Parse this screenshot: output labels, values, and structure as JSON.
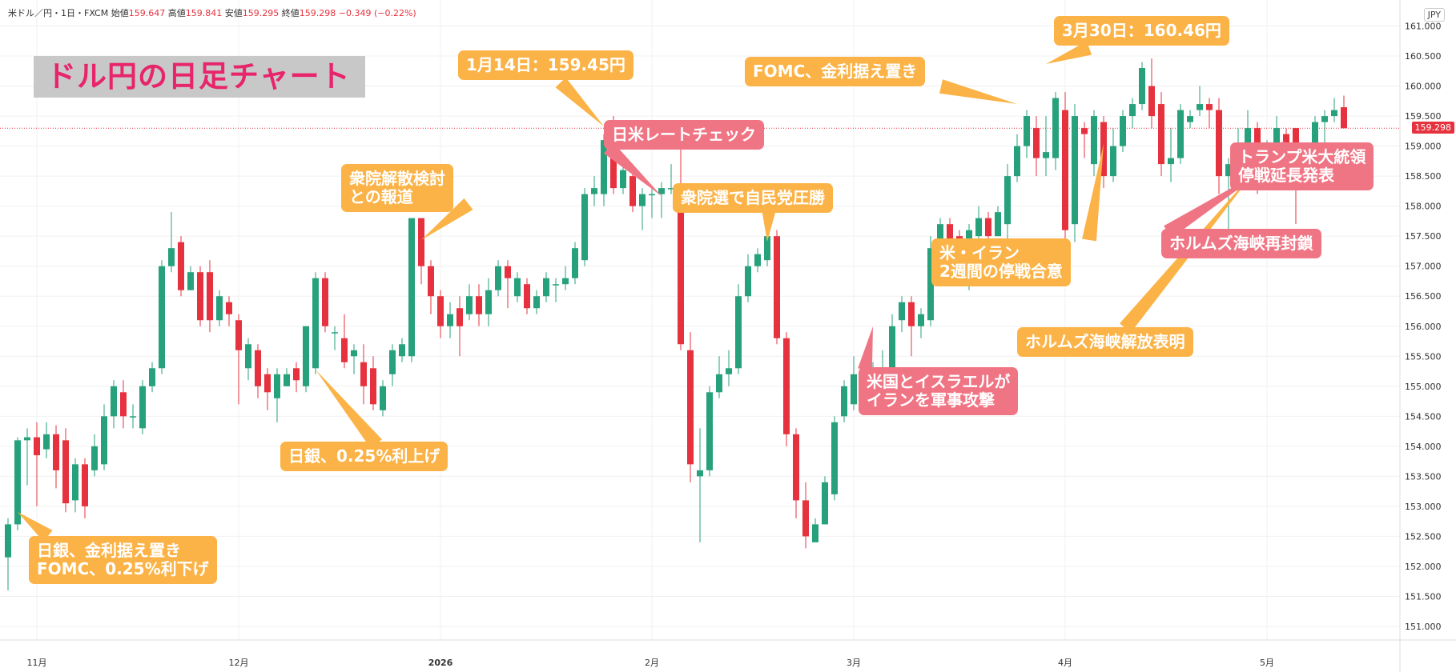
{
  "header": {
    "symbol": "米ドル／円・1日・FXCM",
    "open_label": "始値",
    "open": "159.647",
    "high_label": "高値",
    "high": "159.841",
    "low_label": "安値",
    "low": "159.295",
    "close_label": "終値",
    "close": "159.298",
    "change": "−0.349 (−0.22%)"
  },
  "currency_button": "JPY",
  "title": "ドル円の日足チャート",
  "current_price": "159.298",
  "annotations": [
    {
      "text": "日銀、金利据え置き\nFOMC、0.25%利下げ",
      "color": "orange"
    },
    {
      "text": "日銀、0.25%利上げ",
      "color": "orange"
    },
    {
      "text": "衆院解散検討\nとの報道",
      "color": "orange"
    },
    {
      "text": "1月14日：159.45円",
      "color": "orange"
    },
    {
      "text": "日米レートチェック",
      "color": "red"
    },
    {
      "text": "衆院選で自民党圧勝",
      "color": "orange"
    },
    {
      "text": "FOMC、金利据え置き",
      "color": "orange"
    },
    {
      "text": "3月30日：160.46円",
      "color": "orange"
    },
    {
      "text": "米・イラン\n2週間の停戦合意",
      "color": "orange"
    },
    {
      "text": "米国とイスラエルが\nイランを軍事攻撃",
      "color": "red"
    },
    {
      "text": "ホルムズ海峡解放表明",
      "color": "orange"
    },
    {
      "text": "トランプ米大統領\n停戦延長発表",
      "color": "red"
    },
    {
      "text": "ホルムズ海峡再封鎖",
      "color": "red"
    }
  ],
  "colors": {
    "up": "#26a17b",
    "down": "#e5323e",
    "orange": "#fbb347",
    "red": "#f07584"
  },
  "chart_data": {
    "type": "candlestick",
    "title": "ドル円の日足チャート",
    "xlabel": "",
    "ylabel": "",
    "ylim": [
      150.8,
      161.3
    ],
    "y_ticks": [
      "151.000",
      "151.500",
      "152.000",
      "152.500",
      "153.000",
      "153.500",
      "154.000",
      "154.500",
      "155.000",
      "155.500",
      "156.000",
      "156.500",
      "157.000",
      "157.500",
      "158.000",
      "158.500",
      "159.000",
      "159.500",
      "160.000",
      "160.500",
      "161.000"
    ],
    "x_ticks": [
      {
        "label": "11月",
        "i": 3
      },
      {
        "label": "12月",
        "i": 24
      },
      {
        "label": "2026",
        "i": 45
      },
      {
        "label": "2月",
        "i": 67
      },
      {
        "label": "3月",
        "i": 88
      },
      {
        "label": "4月",
        "i": 110
      },
      {
        "label": "5月",
        "i": 131
      }
    ],
    "grid": true,
    "legend": "none",
    "last_price_line": 159.298,
    "candles": [
      [
        152.15,
        152.7,
        151.6,
        152.8
      ],
      [
        152.7,
        154.1,
        152.6,
        154.15
      ],
      [
        154.1,
        154.15,
        153.35,
        154.3
      ],
      [
        154.15,
        153.85,
        153.0,
        154.4
      ],
      [
        153.95,
        154.2,
        153.8,
        154.4
      ],
      [
        154.2,
        153.6,
        153.3,
        154.35
      ],
      [
        154.1,
        153.05,
        152.9,
        154.3
      ],
      [
        153.1,
        153.7,
        152.9,
        153.8
      ],
      [
        153.7,
        153.0,
        152.8,
        153.8
      ],
      [
        153.6,
        154.0,
        153.5,
        154.2
      ],
      [
        153.7,
        154.5,
        153.6,
        154.7
      ],
      [
        154.5,
        155.0,
        154.3,
        155.1
      ],
      [
        154.9,
        154.5,
        154.3,
        155.1
      ],
      [
        154.5,
        154.5,
        154.3,
        154.7
      ],
      [
        154.3,
        155.0,
        154.2,
        155.1
      ],
      [
        155.0,
        155.3,
        154.9,
        155.4
      ],
      [
        155.3,
        157.0,
        155.2,
        157.1
      ],
      [
        157.0,
        157.3,
        156.9,
        157.9
      ],
      [
        157.4,
        156.6,
        156.5,
        157.5
      ],
      [
        156.6,
        156.9,
        156.6,
        157.0
      ],
      [
        156.9,
        156.1,
        156.0,
        157.0
      ],
      [
        156.9,
        156.1,
        155.9,
        157.1
      ],
      [
        156.1,
        156.5,
        156.0,
        156.6
      ],
      [
        156.4,
        156.2,
        156.0,
        156.5
      ],
      [
        156.1,
        155.6,
        154.7,
        156.2
      ],
      [
        155.3,
        155.7,
        155.1,
        155.8
      ],
      [
        155.6,
        155.0,
        154.8,
        155.7
      ],
      [
        155.2,
        154.9,
        154.6,
        155.3
      ],
      [
        154.8,
        155.2,
        154.4,
        155.3
      ],
      [
        155.0,
        155.2,
        155.0,
        155.3
      ],
      [
        155.3,
        155.1,
        154.9,
        155.4
      ],
      [
        155.0,
        156.0,
        154.9,
        156.0
      ],
      [
        155.3,
        156.8,
        155.2,
        156.9
      ],
      [
        156.8,
        156.0,
        155.9,
        156.9
      ],
      [
        155.9,
        155.9,
        155.6,
        156.0
      ],
      [
        155.8,
        155.4,
        155.3,
        156.2
      ],
      [
        155.5,
        155.6,
        155.2,
        155.7
      ],
      [
        155.4,
        155.0,
        154.7,
        155.7
      ],
      [
        155.3,
        154.7,
        154.6,
        155.5
      ],
      [
        154.6,
        155.0,
        154.5,
        155.1
      ],
      [
        155.2,
        155.6,
        155.0,
        155.7
      ],
      [
        155.5,
        155.7,
        155.4,
        155.8
      ],
      [
        155.5,
        157.8,
        155.4,
        157.8
      ],
      [
        157.8,
        157.0,
        156.7,
        157.8
      ],
      [
        157.0,
        156.5,
        156.2,
        157.1
      ],
      [
        156.5,
        156.0,
        155.8,
        156.6
      ],
      [
        156.0,
        156.2,
        155.8,
        156.4
      ],
      [
        156.3,
        156.0,
        155.5,
        156.5
      ],
      [
        156.2,
        156.5,
        156.1,
        156.7
      ],
      [
        156.5,
        156.2,
        156.0,
        156.7
      ],
      [
        156.2,
        156.6,
        156.0,
        156.8
      ],
      [
        156.6,
        157.0,
        156.5,
        157.1
      ],
      [
        157.0,
        156.8,
        156.3,
        157.1
      ],
      [
        156.5,
        156.8,
        156.4,
        156.9
      ],
      [
        156.7,
        156.3,
        156.2,
        156.8
      ],
      [
        156.3,
        156.5,
        156.2,
        156.6
      ],
      [
        156.5,
        156.8,
        156.4,
        156.9
      ],
      [
        156.7,
        156.7,
        156.4,
        156.8
      ],
      [
        156.7,
        156.8,
        156.6,
        157.0
      ],
      [
        156.8,
        157.3,
        156.7,
        157.4
      ],
      [
        157.1,
        158.2,
        157.0,
        158.3
      ],
      [
        158.2,
        158.3,
        158.0,
        158.5
      ],
      [
        158.2,
        159.1,
        158.0,
        159.2
      ],
      [
        159.0,
        158.3,
        158.2,
        159.5
      ],
      [
        158.3,
        158.6,
        158.2,
        158.8
      ],
      [
        158.5,
        158.0,
        157.9,
        158.7
      ],
      [
        158.0,
        158.2,
        157.6,
        158.3
      ],
      [
        158.2,
        158.2,
        157.8,
        158.3
      ],
      [
        158.2,
        158.3,
        157.8,
        158.4
      ],
      [
        158.3,
        158.3,
        158.2,
        158.7
      ],
      [
        158.3,
        155.7,
        155.6,
        159.4
      ],
      [
        155.6,
        153.7,
        153.4,
        155.9
      ],
      [
        153.5,
        153.6,
        152.4,
        154.3
      ],
      [
        153.6,
        154.9,
        153.5,
        155.0
      ],
      [
        154.9,
        155.2,
        154.8,
        155.5
      ],
      [
        155.2,
        155.3,
        155.0,
        155.6
      ],
      [
        155.3,
        156.5,
        155.2,
        156.7
      ],
      [
        156.5,
        157.0,
        156.4,
        157.2
      ],
      [
        157.0,
        157.2,
        156.9,
        157.3
      ],
      [
        157.1,
        157.5,
        157.0,
        157.6
      ],
      [
        157.5,
        155.8,
        155.7,
        157.6
      ],
      [
        155.8,
        154.2,
        154.0,
        155.9
      ],
      [
        154.2,
        153.1,
        152.8,
        154.3
      ],
      [
        153.1,
        152.5,
        152.3,
        153.4
      ],
      [
        152.4,
        152.7,
        152.5,
        152.8
      ],
      [
        152.7,
        153.4,
        152.7,
        153.5
      ],
      [
        153.2,
        154.4,
        153.1,
        154.5
      ],
      [
        154.5,
        155.0,
        154.4,
        155.1
      ],
      [
        154.7,
        155.2,
        154.6,
        155.5
      ],
      [
        155.2,
        155.2,
        155.1,
        155.3
      ],
      [
        155.0,
        155.2,
        154.7,
        155.4
      ],
      [
        155.1,
        155.2,
        155.0,
        155.6
      ],
      [
        155.2,
        156.0,
        155.1,
        156.2
      ],
      [
        156.1,
        156.4,
        155.9,
        156.5
      ],
      [
        156.4,
        156.0,
        155.5,
        156.5
      ],
      [
        156.0,
        156.2,
        155.8,
        156.3
      ],
      [
        156.1,
        157.3,
        156.0,
        157.5
      ],
      [
        157.3,
        157.7,
        157.1,
        157.8
      ],
      [
        157.7,
        156.9,
        156.8,
        157.8
      ],
      [
        157.5,
        157.0,
        156.7,
        157.6
      ],
      [
        157.1,
        157.6,
        156.6,
        157.7
      ],
      [
        157.5,
        157.8,
        157.2,
        158.0
      ],
      [
        157.8,
        157.5,
        157.3,
        157.9
      ],
      [
        157.5,
        157.9,
        157.5,
        158.0
      ],
      [
        157.7,
        158.5,
        157.4,
        158.7
      ],
      [
        158.5,
        159.0,
        158.4,
        159.2
      ],
      [
        159.0,
        159.5,
        158.8,
        159.6
      ],
      [
        159.3,
        158.8,
        158.5,
        159.5
      ],
      [
        158.8,
        158.9,
        158.5,
        159.5
      ],
      [
        158.8,
        159.8,
        158.6,
        159.9
      ],
      [
        159.6,
        157.6,
        157.4,
        159.9
      ],
      [
        157.7,
        159.5,
        157.4,
        159.7
      ],
      [
        159.3,
        159.2,
        158.8,
        159.4
      ],
      [
        158.7,
        159.5,
        158.5,
        159.6
      ],
      [
        159.4,
        158.5,
        158.3,
        159.5
      ],
      [
        158.5,
        159.0,
        158.4,
        159.3
      ],
      [
        159.0,
        159.5,
        158.9,
        159.6
      ],
      [
        159.5,
        159.7,
        159.3,
        159.8
      ],
      [
        159.7,
        160.3,
        159.6,
        160.4
      ],
      [
        160.0,
        159.5,
        159.3,
        160.46
      ],
      [
        159.7,
        158.7,
        158.5,
        159.9
      ],
      [
        158.7,
        158.8,
        158.4,
        159.3
      ],
      [
        158.8,
        159.6,
        158.7,
        159.7
      ],
      [
        159.4,
        159.5,
        159.3,
        159.6
      ],
      [
        159.6,
        159.7,
        159.5,
        160.0
      ],
      [
        159.7,
        159.6,
        159.3,
        159.8
      ],
      [
        159.6,
        158.5,
        158.2,
        159.8
      ],
      [
        158.5,
        158.7,
        157.5,
        158.8
      ],
      [
        158.5,
        158.9,
        158.4,
        159.3
      ],
      [
        158.9,
        159.3,
        158.7,
        159.6
      ],
      [
        159.3,
        158.7,
        158.2,
        159.4
      ],
      [
        158.8,
        159.0,
        158.7,
        159.1
      ],
      [
        159.0,
        159.3,
        158.7,
        159.5
      ],
      [
        159.2,
        159.0,
        158.5,
        159.3
      ],
      [
        159.3,
        158.6,
        157.7,
        159.3
      ],
      [
        158.6,
        158.8,
        158.6,
        158.9
      ],
      [
        158.9,
        159.4,
        158.7,
        159.5
      ],
      [
        159.4,
        159.5,
        159.0,
        159.6
      ],
      [
        159.5,
        159.6,
        159.4,
        159.8
      ],
      [
        159.647,
        159.298,
        159.295,
        159.841
      ]
    ]
  }
}
